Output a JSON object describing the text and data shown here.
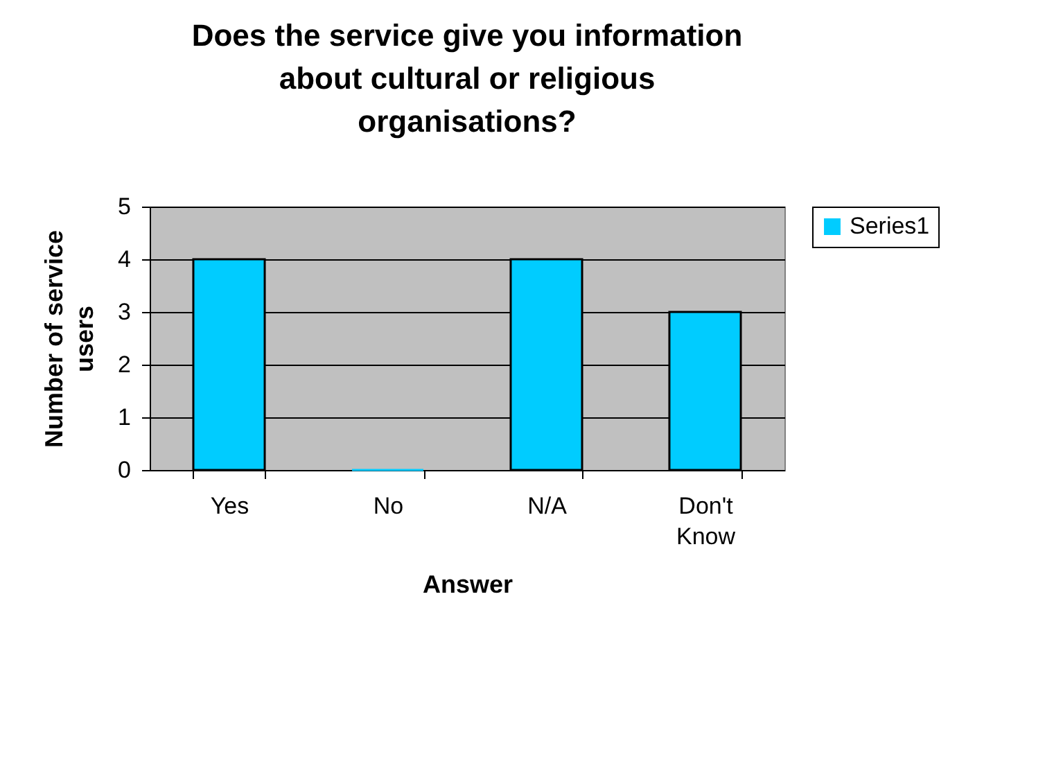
{
  "chart_data": {
    "type": "bar",
    "title": "Does the service give you information about cultural or religious organisations?",
    "xlabel": "Answer",
    "ylabel": "Number of service users",
    "categories": [
      "Yes",
      "No",
      "N/A",
      "Don't Know"
    ],
    "series": [
      {
        "name": "Series1",
        "color": "#00ccff",
        "values": [
          4,
          0,
          4,
          3
        ]
      }
    ],
    "ylim": [
      0,
      5
    ],
    "yticks": [
      0,
      1,
      2,
      3,
      4,
      5
    ],
    "grid": "y",
    "legend": "right"
  }
}
